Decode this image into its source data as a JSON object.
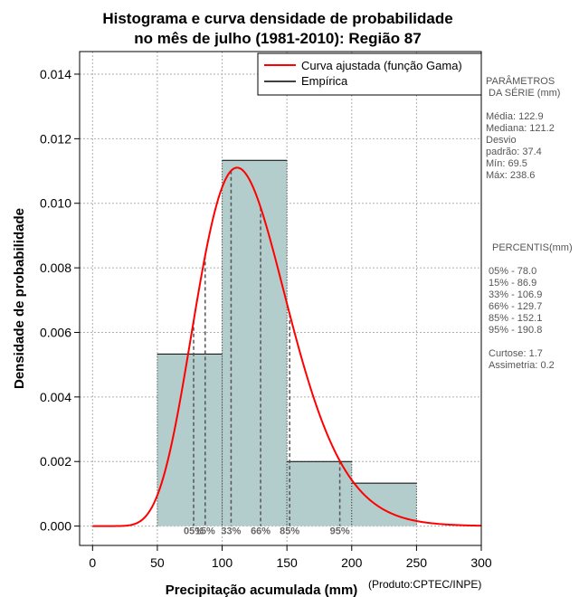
{
  "chart_data": {
    "type": "histogram",
    "title_line1": "Histograma e curva densidade de probabilidade",
    "title_line2": "no mês de julho (1981-2010): Região 87",
    "xlabel": "Precipitação acumulada (mm)",
    "ylabel": "Densidade de probabilidade",
    "xlim": [
      -10,
      300
    ],
    "ylim": [
      -0.0006,
      0.0147
    ],
    "x_ticks": [
      0,
      50,
      100,
      150,
      200,
      250,
      300
    ],
    "y_ticks": [
      0.0,
      0.002,
      0.004,
      0.006,
      0.008,
      0.01,
      0.012,
      0.014
    ],
    "y_tick_labels": [
      "0.000",
      "0.002",
      "0.004",
      "0.006",
      "0.008",
      "0.010",
      "0.012",
      "0.014"
    ],
    "grid": true,
    "bins": [
      {
        "x0": 50,
        "x1": 100,
        "density": 0.00533
      },
      {
        "x0": 100,
        "x1": 150,
        "density": 0.01133
      },
      {
        "x0": 150,
        "x1": 200,
        "density": 0.002
      },
      {
        "x0": 200,
        "x1": 250,
        "density": 0.00133
      }
    ],
    "fitted_curve": {
      "distribution": "gamma",
      "mean": 122.9,
      "sd": 37.4,
      "x_range": [
        0,
        300
      ]
    },
    "percentile_markers": [
      {
        "label": "05%",
        "x": 78.0
      },
      {
        "label": "15%",
        "x": 86.9
      },
      {
        "label": "33%",
        "x": 106.9
      },
      {
        "label": "66%",
        "x": 129.7
      },
      {
        "label": "85%",
        "x": 152.1
      },
      {
        "label": "95%",
        "x": 190.8
      }
    ],
    "legend": {
      "position": "top-right",
      "entries": [
        {
          "label": "Curva ajustada (função Gama)",
          "color": "#ff0000"
        },
        {
          "label": "Empírica",
          "color": "#000000"
        }
      ]
    },
    "colors": {
      "bar_fill": "#b3cccc",
      "curve": "#ff0000",
      "percentile_line": "#555555",
      "grid": "#b0b0b0"
    }
  },
  "side_panel": {
    "params_title_1": "PARÂMETROS",
    "params_title_2": "DA SÉRIE (mm)",
    "stats": [
      "Média:  122.9",
      "Mediana:  121.2",
      "Desvio",
      "padrão:  37.4",
      "Mín:  69.5",
      "Máx:  238.6"
    ],
    "percentis_title": "PERCENTIS(mm)",
    "percentis": [
      "05% -  78.0",
      "15% -  86.9",
      "33% -  106.9",
      "66% -  129.7",
      "85% -  152.1",
      "95% -  190.8"
    ],
    "curtose": "Curtose:  1.7",
    "assimetria": "Assimetria:  0.2"
  },
  "credit": "(Produto:CPTEC/INPE)"
}
